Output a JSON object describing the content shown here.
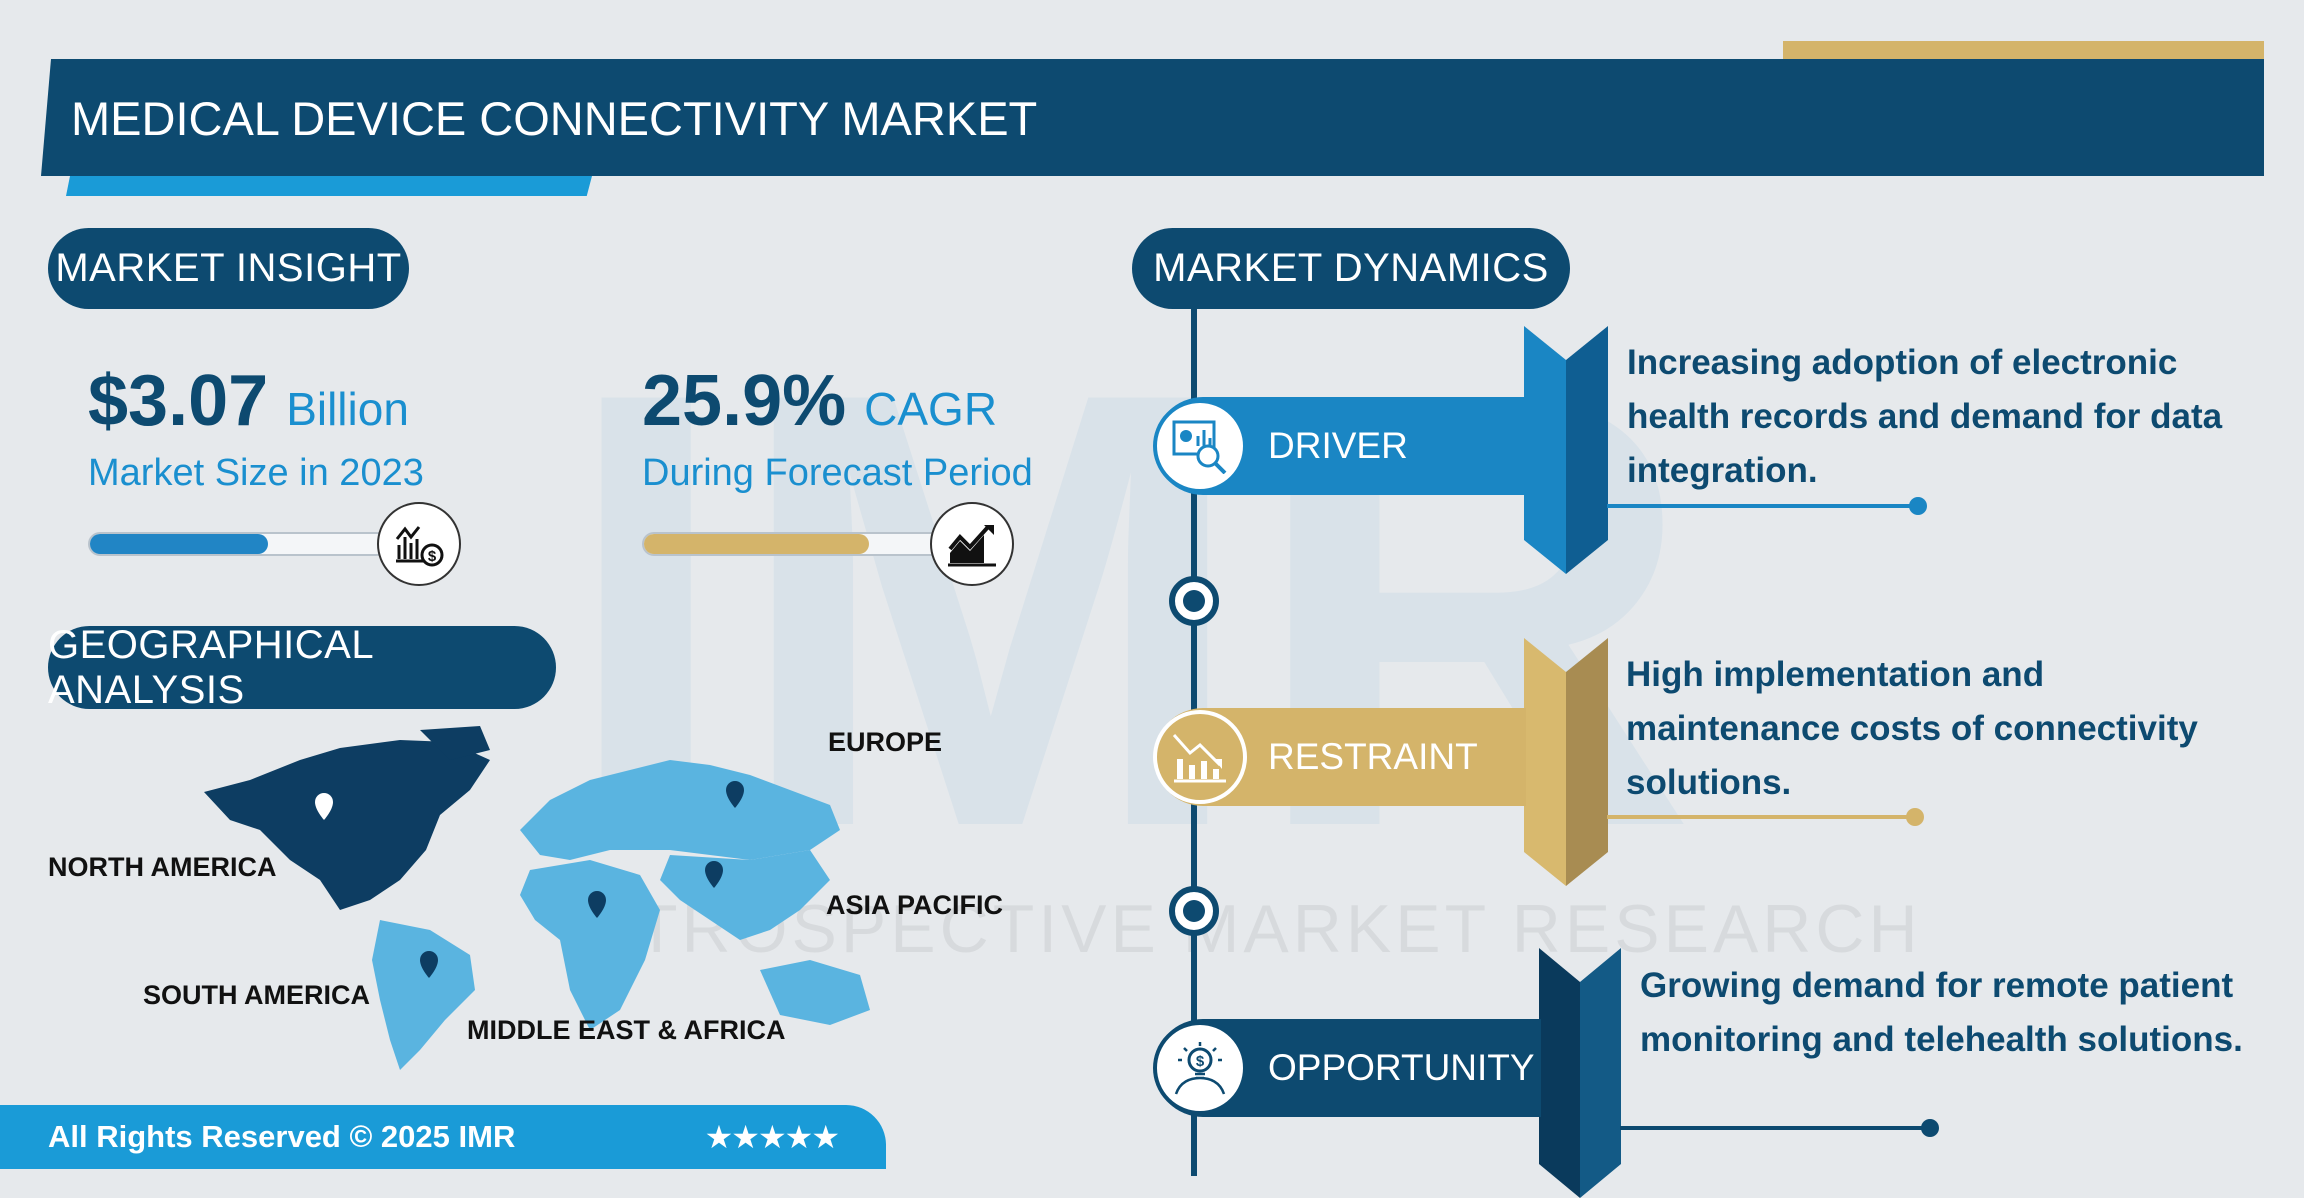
{
  "header": {
    "title": "MEDICAL DEVICE CONNECTIVITY MARKET"
  },
  "watermark": {
    "text": "INTROSPECTIVE MARKET RESEARCH",
    "logo": "IMR"
  },
  "insight": {
    "heading": "MARKET INSIGHT",
    "size": {
      "value": "$3.07",
      "unit": "Billion",
      "label": "Market Size in 2023",
      "progress_percent": 60,
      "icon": "chart-dollar-icon"
    },
    "cagr": {
      "value": "25.9%",
      "unit": "CAGR",
      "label": "During Forecast Period",
      "progress_percent": 76,
      "icon": "growth-chart-icon"
    }
  },
  "geo": {
    "heading": "GEOGRAPHICAL ANALYSIS",
    "regions": [
      "NORTH AMERICA",
      "EUROPE",
      "ASIA PACIFIC",
      "SOUTH AMERICA",
      "MIDDLE EAST & AFRICA"
    ],
    "highlight": "NORTH AMERICA"
  },
  "footer": {
    "text": "All Rights Reserved © 2025 IMR",
    "stars": "★★★★★"
  },
  "dynamics": {
    "heading": "MARKET DYNAMICS",
    "items": [
      {
        "label": "DRIVER",
        "text": "Increasing adoption of electronic health records and demand for data integration.",
        "color": "#1a86c4",
        "icon": "data-analysis-icon"
      },
      {
        "label": "RESTRAINT",
        "text": "High implementation and maintenance costs of connectivity solutions.",
        "color": "#d4b46a",
        "icon": "declining-chart-icon"
      },
      {
        "label": "OPPORTUNITY",
        "text": "Growing demand for remote patient monitoring and telehealth solutions.",
        "color": "#0d4a70",
        "icon": "idea-dollar-icon"
      }
    ]
  },
  "colors": {
    "navy": "#0d4a70",
    "blue": "#1a86c4",
    "gold": "#d4b46a",
    "map_dark": "#0d3d62",
    "map_light": "#5ab4e0"
  }
}
